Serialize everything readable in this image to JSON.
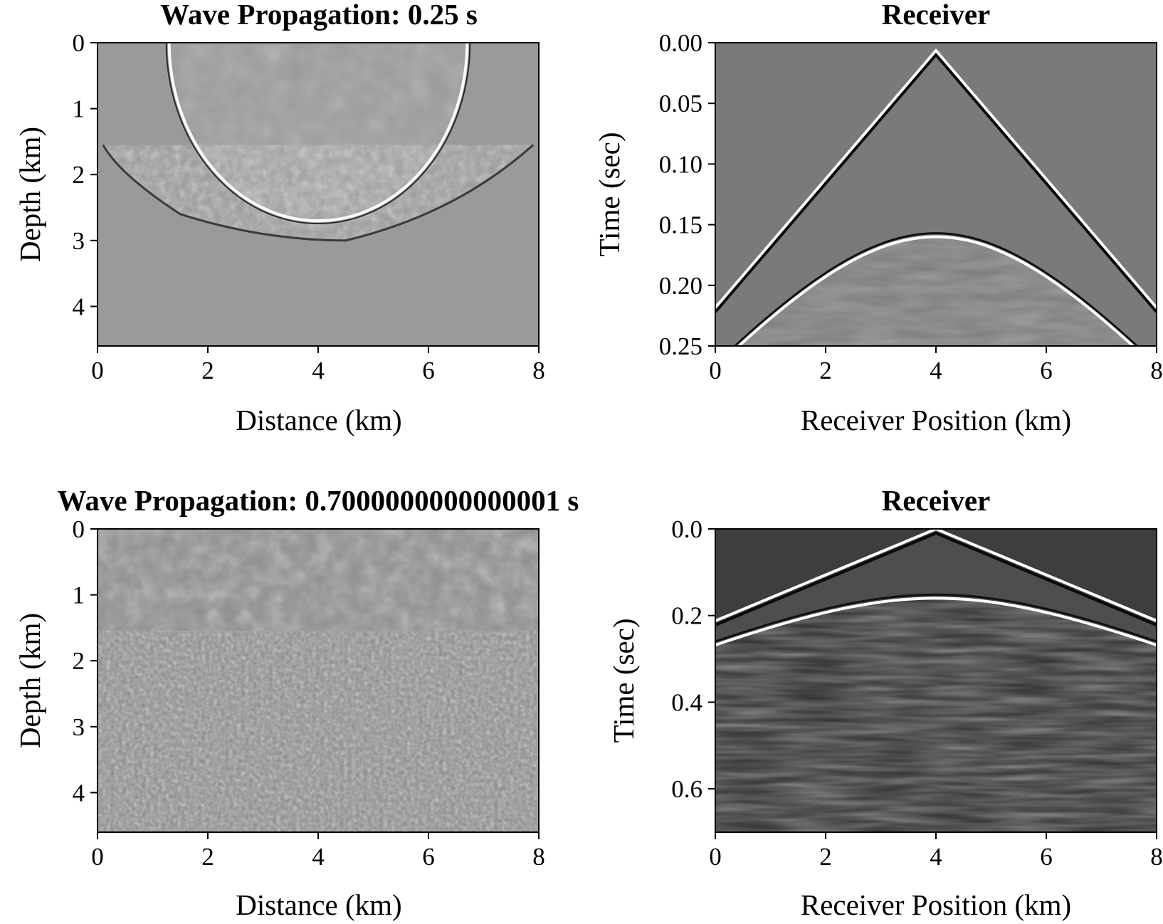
{
  "chart_data": [
    {
      "type": "heatmap",
      "title": "Wave Propagation: 0.25 s",
      "xlabel": "Distance (km)",
      "ylabel": "Depth (km)",
      "xlim": [
        0,
        8
      ],
      "ylim": [
        4.6,
        0
      ],
      "xticks": [
        "0",
        "2",
        "4",
        "6",
        "8"
      ],
      "yticks": [
        "0",
        "1",
        "2",
        "3",
        "4"
      ],
      "colormap": "gray",
      "background": "#9a9a9a",
      "features": {
        "wavefront_radius_km": 2.7,
        "source_x_km": 4.0,
        "interface_depth_km": 1.55,
        "scattered_front_max_depth_km": 3.0
      }
    },
    {
      "type": "heatmap",
      "title": "Receiver",
      "xlabel": "Receiver Position (km)",
      "ylabel": "Time (sec)",
      "xlim": [
        0,
        8
      ],
      "ylim": [
        0.25,
        0
      ],
      "xticks": [
        "0",
        "2",
        "4",
        "6",
        "8"
      ],
      "yticks": [
        "0.00",
        "0.05",
        "0.10",
        "0.15",
        "0.20",
        "0.25"
      ],
      "colormap": "gray",
      "background": "#7a7a7a",
      "features": {
        "direct_wave": [
          [
            0,
            0.222
          ],
          [
            4,
            0.01
          ],
          [
            8,
            0.222
          ]
        ],
        "reflection_apex_time": 0.16,
        "reflection_t_at_0": 0.268
      }
    },
    {
      "type": "heatmap",
      "title": "Wave Propagation: 0.7000000000000001 s",
      "xlabel": "Distance (km)",
      "ylabel": "Depth (km)",
      "xlim": [
        0,
        8
      ],
      "ylim": [
        4.6,
        0
      ],
      "xticks": [
        "0",
        "2",
        "4",
        "6",
        "8"
      ],
      "yticks": [
        "0",
        "1",
        "2",
        "3",
        "4"
      ],
      "colormap": "gray",
      "background": "#8e8e8e",
      "features": {
        "interface_depth_km": 1.55
      }
    },
    {
      "type": "heatmap",
      "title": "Receiver",
      "xlabel": "Receiver Position (km)",
      "ylabel": "Time (sec)",
      "xlim": [
        0,
        8
      ],
      "ylim": [
        0.7,
        0
      ],
      "xticks": [
        "0",
        "2",
        "4",
        "6",
        "8"
      ],
      "yticks": [
        "0.0",
        "0.2",
        "0.4",
        "0.6"
      ],
      "colormap": "gray",
      "background": "#3e3e3e",
      "features": {
        "direct_wave": [
          [
            0,
            0.222
          ],
          [
            4,
            0.01
          ],
          [
            8,
            0.222
          ]
        ],
        "reflection_apex_time": 0.16,
        "reflection_t_at_0": 0.268
      }
    }
  ]
}
